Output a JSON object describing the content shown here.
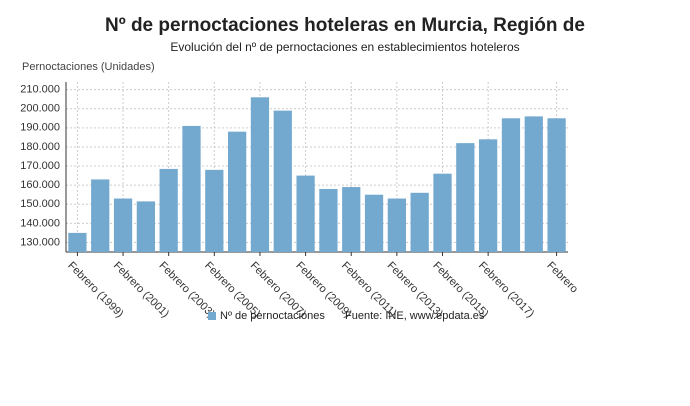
{
  "chart_data": {
    "type": "bar",
    "title": "Nº de pernoctaciones hoteleras en Murcia, Región de",
    "subtitle": "Evolución del nº de pernoctaciones en establecimientos hoteleros",
    "y_axis_label": "Pernoctaciones (Unidades)",
    "source": "Fuente: INE, www.epdata.es",
    "categories": [
      "Febrero (1999)",
      null,
      "Febrero (2001)",
      null,
      "Febrero (2003)",
      null,
      "Febrero (2005)",
      null,
      "Febrero (2007)",
      null,
      "Febrero (2009)",
      null,
      "Febrero (2011)",
      null,
      "Febrero (2013)",
      null,
      "Febrero (2015)",
      null,
      "Febrero (2017)",
      null,
      null,
      "Febrero"
    ],
    "series": [
      {
        "name": "Nº de pernoctaciones",
        "color": "#74a9cf",
        "values": [
          135000,
          163000,
          153000,
          151500,
          168500,
          191000,
          168000,
          188000,
          206000,
          199000,
          165000,
          158000,
          159000,
          155000,
          153000,
          156000,
          166000,
          182000,
          184000,
          195000,
          196000,
          195000
        ]
      }
    ],
    "ylim": [
      125000,
      214000
    ],
    "yticks": [
      {
        "value": 130000,
        "label": "130.000"
      },
      {
        "value": 140000,
        "label": "140.000"
      },
      {
        "value": 150000,
        "label": "150.000"
      },
      {
        "value": 160000,
        "label": "160.000"
      },
      {
        "value": 170000,
        "label": "170.000"
      },
      {
        "value": 180000,
        "label": "180.000"
      },
      {
        "value": 190000,
        "label": "190.000"
      },
      {
        "value": 200000,
        "label": "200.000"
      },
      {
        "value": 210000,
        "label": "210.000"
      }
    ],
    "grid": true
  }
}
